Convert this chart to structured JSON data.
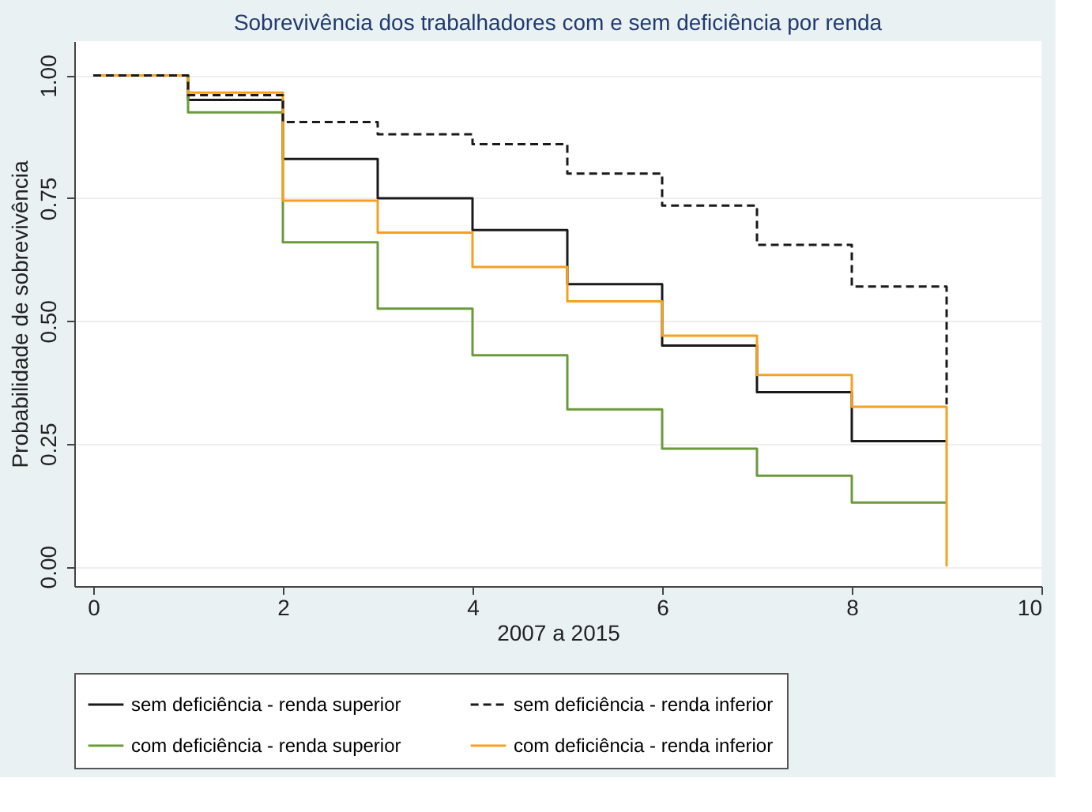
{
  "chart_data": {
    "type": "step",
    "title": "Sobrevivência dos trabalhadores com e sem deficiência por renda",
    "xlabel": "2007 a 2015",
    "ylabel": "Probabilidade de sobrevivência",
    "x": [
      0,
      1,
      2,
      3,
      4,
      5,
      6,
      7,
      8,
      9
    ],
    "series": [
      {
        "name": "sem deficiência - renda superior",
        "color": "#1a1a1a",
        "line_style": "solid",
        "values": [
          1.0,
          0.95,
          0.83,
          0.75,
          0.685,
          0.575,
          0.45,
          0.355,
          0.255,
          0.255
        ]
      },
      {
        "name": "sem deficiência - renda inferior",
        "color": "#1a1a1a",
        "line_style": "dashed",
        "values": [
          1.0,
          0.96,
          0.905,
          0.88,
          0.86,
          0.8,
          0.735,
          0.655,
          0.57,
          0.33
        ]
      },
      {
        "name": "com deficiência - renda superior",
        "color": "#6a9a3a",
        "line_style": "solid",
        "values": [
          1.0,
          0.925,
          0.66,
          0.525,
          0.43,
          0.32,
          0.24,
          0.185,
          0.13,
          0.13
        ]
      },
      {
        "name": "com deficiência - renda inferior",
        "color": "#f5a020",
        "line_style": "solid",
        "values": [
          1.0,
          0.965,
          0.745,
          0.68,
          0.61,
          0.54,
          0.47,
          0.39,
          0.325,
          0.0
        ]
      }
    ],
    "xlim": [
      -0.2,
      10
    ],
    "xticks": [
      0,
      2,
      4,
      6,
      8,
      10
    ],
    "ylim": [
      -0.04,
      1.07
    ],
    "yticks": [
      {
        "value": 0,
        "label": "0.00"
      },
      {
        "value": 0.25,
        "label": "0.25"
      },
      {
        "value": 0.5,
        "label": "0.50"
      },
      {
        "value": 0.75,
        "label": "0.75"
      },
      {
        "value": 1,
        "label": "1.00"
      }
    ],
    "grid": "y",
    "legend": "bottom"
  }
}
